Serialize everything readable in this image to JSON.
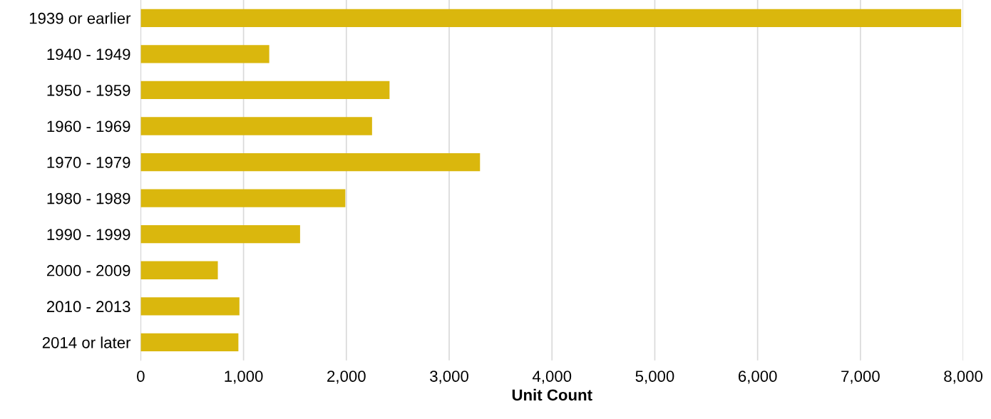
{
  "chart_data": {
    "type": "bar",
    "orientation": "horizontal",
    "xlabel": "Unit Count",
    "categories": [
      "1939 or earlier",
      "1940 - 1949",
      "1950 - 1959",
      "1960 - 1969",
      "1970 - 1979",
      "1980 - 1989",
      "1990 - 1999",
      "2000 - 2009",
      "2010 - 2013",
      "2014 or later"
    ],
    "values": [
      7980,
      1250,
      2420,
      2250,
      3300,
      1990,
      1550,
      750,
      960,
      950
    ],
    "color": "#dab70d",
    "xlim": [
      0,
      8000
    ],
    "xticks": [
      0,
      {
        "value": 1000,
        "label": "1,000"
      },
      {
        "value": 2000,
        "label": "2,000"
      },
      {
        "value": 3000,
        "label": "3,000"
      },
      {
        "value": 4000,
        "label": "4,000"
      },
      {
        "value": 5000,
        "label": "5,000"
      },
      {
        "value": 6000,
        "label": "6,000"
      },
      {
        "value": 7000,
        "label": "7,000"
      },
      {
        "value": 8000,
        "label": "8,000"
      }
    ],
    "grid": "x",
    "legend": false
  }
}
